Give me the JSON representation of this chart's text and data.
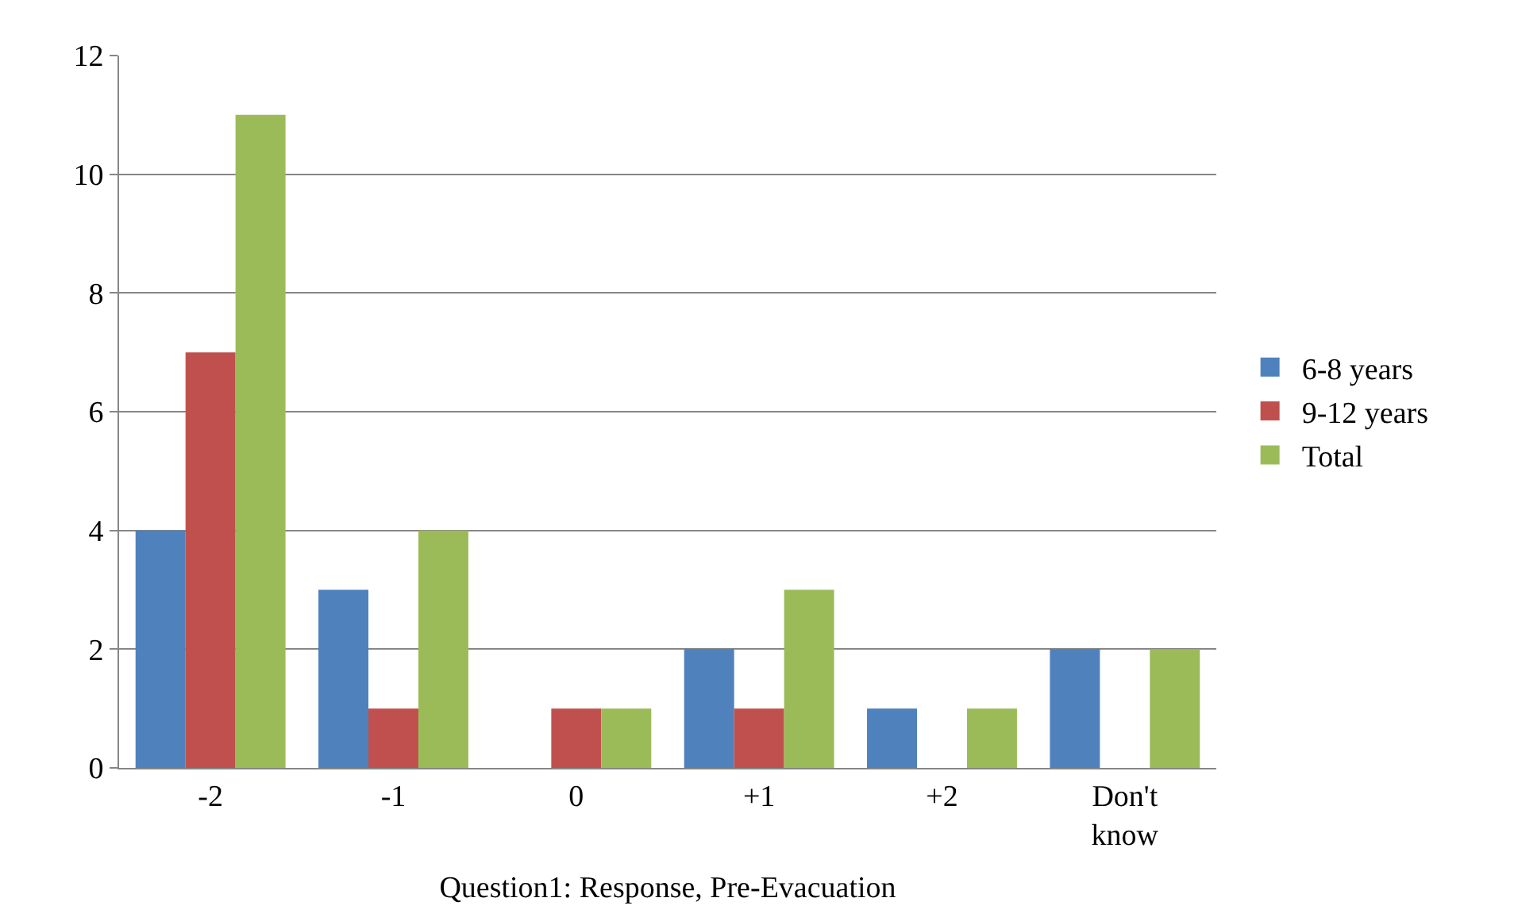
{
  "chart_data": {
    "type": "bar",
    "xlabel": "Question1: Response, Pre-Evacuation",
    "categories": [
      "-2",
      "-1",
      "0",
      "+1",
      "+2",
      "Don't know"
    ],
    "series": [
      {
        "name": "6-8 years",
        "color": "#4f81bd",
        "values": [
          4,
          3,
          0,
          2,
          1,
          2
        ]
      },
      {
        "name": "9-12 years",
        "color": "#c0504d",
        "values": [
          7,
          1,
          1,
          1,
          0,
          0
        ]
      },
      {
        "name": "Total",
        "color": "#9bbb59",
        "values": [
          11,
          4,
          1,
          3,
          1,
          2
        ]
      }
    ],
    "ylim": [
      0,
      12
    ],
    "yticks": [
      0,
      2,
      4,
      6,
      8,
      10,
      12
    ],
    "grid": "y",
    "legend": "right"
  }
}
